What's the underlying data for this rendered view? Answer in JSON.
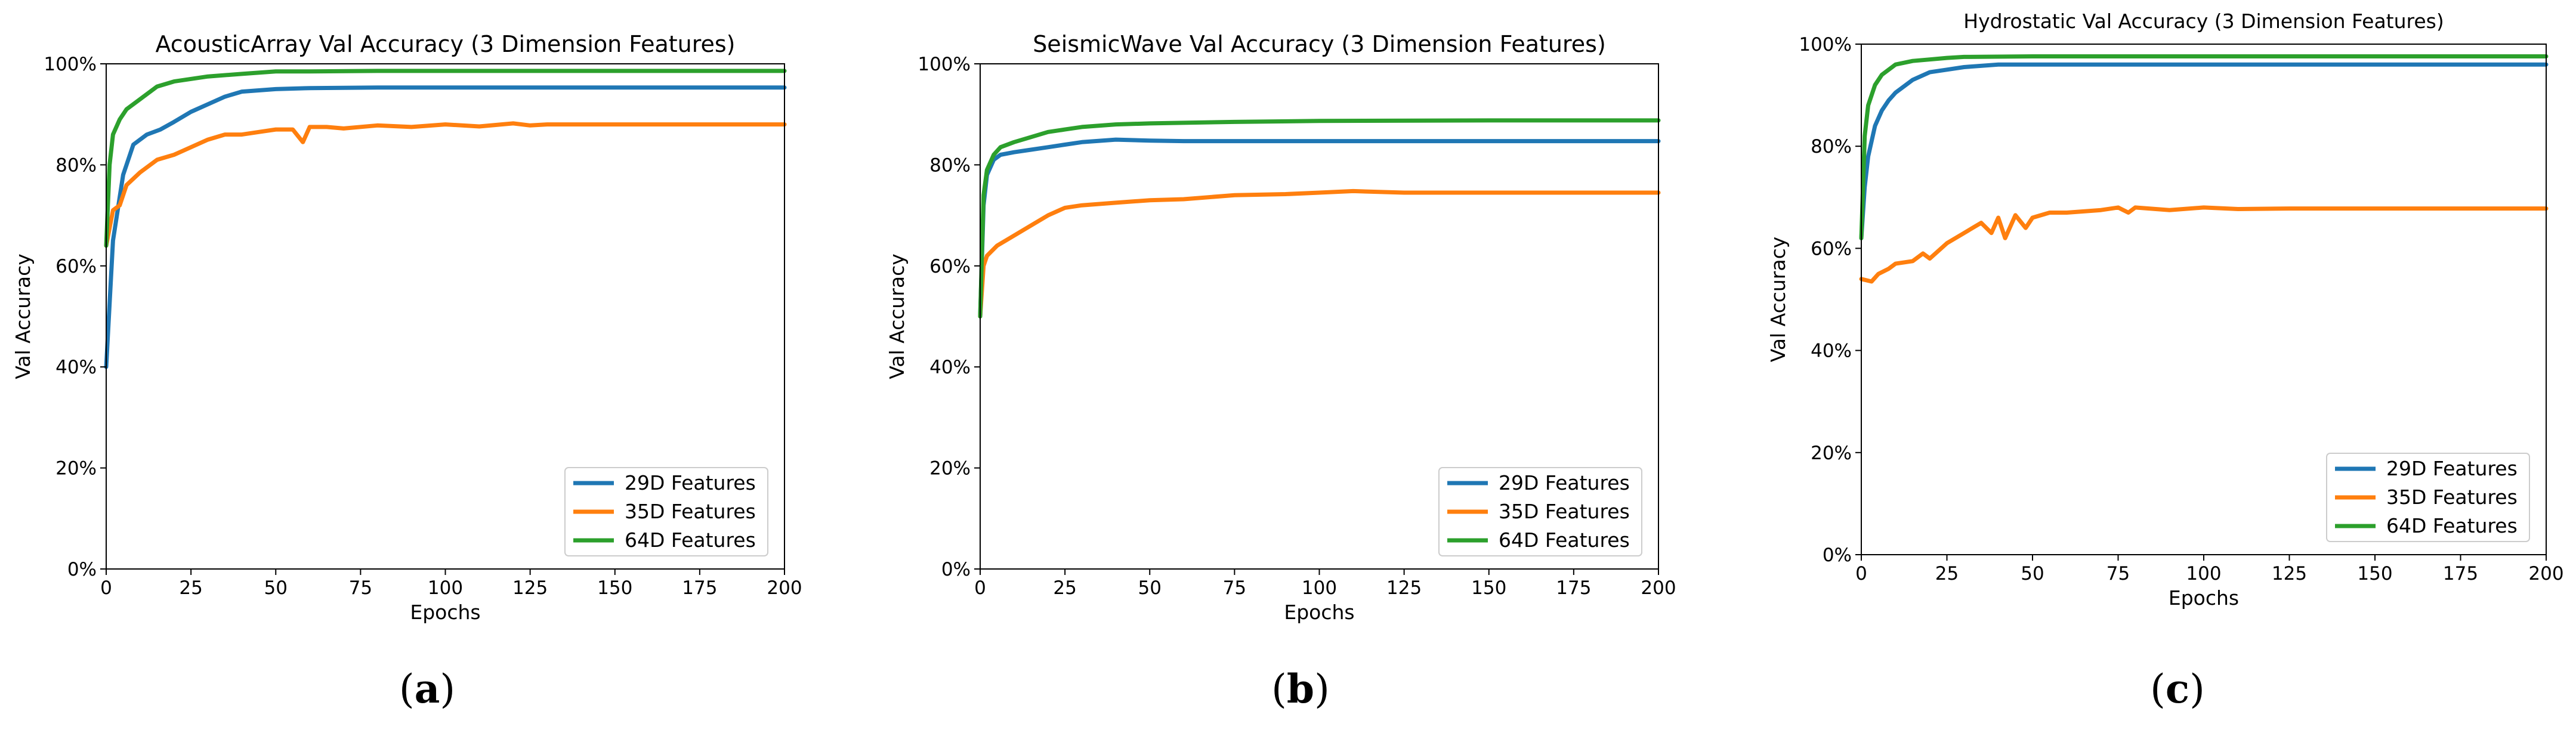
{
  "chart_data": [
    {
      "type": "line",
      "title": "AcousticArray Val Accuracy (3 Dimension Features)",
      "xlabel": "Epochs",
      "ylabel": "Val Accuracy",
      "xlim": [
        0,
        200
      ],
      "ylim": [
        0,
        100
      ],
      "xticks": [
        "0",
        "25",
        "50",
        "75",
        "100",
        "125",
        "150",
        "175",
        "200"
      ],
      "yticks": [
        "0%",
        "20%",
        "40%",
        "60%",
        "80%",
        "100%"
      ],
      "legend_position": "bottom-right",
      "caption": {
        "open": "(",
        "letter": "a",
        "close": ")"
      },
      "series": [
        {
          "name": "29D Features",
          "color": "#1f77b4",
          "x": [
            0,
            2,
            5,
            8,
            12,
            16,
            20,
            25,
            30,
            35,
            40,
            50,
            60,
            80,
            100,
            150,
            200
          ],
          "y": [
            40,
            65,
            78,
            84,
            86,
            87,
            88.5,
            90.5,
            92,
            93.5,
            94.5,
            95,
            95.2,
            95.3,
            95.3,
            95.3,
            95.3
          ]
        },
        {
          "name": "35D Features",
          "color": "#ff7f0e",
          "x": [
            0,
            2,
            4,
            6,
            10,
            15,
            20,
            25,
            30,
            35,
            40,
            45,
            50,
            55,
            58,
            60,
            65,
            70,
            80,
            90,
            100,
            110,
            120,
            125,
            130,
            140,
            150,
            175,
            200
          ],
          "y": [
            64,
            71,
            72,
            76,
            78.5,
            81,
            82,
            83.5,
            85,
            86,
            86,
            86.5,
            87,
            87,
            84.5,
            87.5,
            87.5,
            87.2,
            87.8,
            87.5,
            88,
            87.6,
            88.2,
            87.8,
            88,
            88,
            88,
            88,
            88
          ]
        },
        {
          "name": "64D Features",
          "color": "#2ca02c",
          "x": [
            0,
            1,
            2,
            4,
            6,
            10,
            15,
            20,
            30,
            40,
            50,
            60,
            80,
            100,
            150,
            200
          ],
          "y": [
            64,
            80,
            86,
            89,
            91,
            93,
            95.5,
            96.5,
            97.5,
            98,
            98.5,
            98.5,
            98.6,
            98.6,
            98.6,
            98.6
          ]
        }
      ]
    },
    {
      "type": "line",
      "title": "SeismicWave Val Accuracy (3 Dimension Features)",
      "xlabel": "Epochs",
      "ylabel": "Val Accuracy",
      "xlim": [
        0,
        200
      ],
      "ylim": [
        0,
        100
      ],
      "xticks": [
        "0",
        "25",
        "50",
        "75",
        "100",
        "125",
        "150",
        "175",
        "200"
      ],
      "yticks": [
        "0%",
        "20%",
        "40%",
        "60%",
        "80%",
        "100%"
      ],
      "legend_position": "bottom-right",
      "caption": {
        "open": "(",
        "letter": "b",
        "close": ")"
      },
      "series": [
        {
          "name": "29D Features",
          "color": "#1f77b4",
          "x": [
            0,
            1,
            2,
            4,
            6,
            10,
            15,
            20,
            25,
            30,
            40,
            50,
            60,
            75,
            100,
            150,
            200
          ],
          "y": [
            50,
            72,
            78,
            81,
            82,
            82.5,
            83,
            83.5,
            84,
            84.5,
            85,
            84.8,
            84.7,
            84.7,
            84.7,
            84.7,
            84.7
          ]
        },
        {
          "name": "35D Features",
          "color": "#ff7f0e",
          "x": [
            0,
            1,
            2,
            5,
            10,
            15,
            20,
            25,
            30,
            40,
            50,
            60,
            75,
            90,
            100,
            110,
            125,
            150,
            200
          ],
          "y": [
            50,
            60,
            62,
            64,
            66,
            68,
            70,
            71.5,
            72,
            72.5,
            73,
            73.2,
            74,
            74.2,
            74.5,
            74.8,
            74.5,
            74.5,
            74.5
          ]
        },
        {
          "name": "64D Features",
          "color": "#2ca02c",
          "x": [
            0,
            1,
            2,
            4,
            6,
            10,
            15,
            20,
            25,
            30,
            40,
            50,
            75,
            100,
            150,
            200
          ],
          "y": [
            50,
            74,
            79,
            82,
            83.5,
            84.5,
            85.5,
            86.5,
            87,
            87.5,
            88,
            88.2,
            88.5,
            88.7,
            88.8,
            88.8
          ]
        }
      ]
    },
    {
      "type": "line",
      "title": "Hydrostatic Val Accuracy (3 Dimension Features)",
      "xlabel": "Epochs",
      "ylabel": "Val Accuracy",
      "xlim": [
        0,
        200
      ],
      "ylim": [
        0,
        100
      ],
      "xticks": [
        "0",
        "25",
        "50",
        "75",
        "100",
        "125",
        "150",
        "175",
        "200"
      ],
      "yticks": [
        "0%",
        "20%",
        "40%",
        "60%",
        "80%",
        "100%"
      ],
      "legend_position": "bottom-right",
      "caption": {
        "open": "(",
        "letter": "c",
        "close": ")"
      },
      "series": [
        {
          "name": "29D Features",
          "color": "#1f77b4",
          "x": [
            0,
            1,
            2,
            4,
            6,
            8,
            10,
            15,
            20,
            25,
            30,
            40,
            50,
            75,
            100,
            150,
            200
          ],
          "y": [
            62,
            72,
            78,
            84,
            87,
            89,
            90.5,
            93,
            94.5,
            95,
            95.5,
            96,
            96,
            96,
            96,
            96,
            96
          ]
        },
        {
          "name": "35D Features",
          "color": "#ff7f0e",
          "x": [
            0,
            3,
            5,
            8,
            10,
            15,
            18,
            20,
            25,
            30,
            35,
            38,
            40,
            42,
            45,
            48,
            50,
            55,
            60,
            70,
            75,
            78,
            80,
            90,
            100,
            110,
            125,
            150,
            200
          ],
          "y": [
            54,
            53.5,
            55,
            56,
            57,
            57.5,
            59,
            58,
            61,
            63,
            65,
            63,
            66,
            62,
            66.5,
            64,
            66,
            67,
            67,
            67.5,
            68,
            67,
            68,
            67.5,
            68,
            67.7,
            67.8,
            67.8,
            67.8
          ]
        },
        {
          "name": "64D Features",
          "color": "#2ca02c",
          "x": [
            0,
            1,
            2,
            4,
            6,
            8,
            10,
            15,
            20,
            25,
            30,
            50,
            75,
            100,
            150,
            200
          ],
          "y": [
            62,
            82,
            88,
            92,
            94,
            95,
            96,
            96.7,
            97,
            97.3,
            97.5,
            97.6,
            97.6,
            97.6,
            97.6,
            97.6
          ]
        }
      ]
    }
  ]
}
